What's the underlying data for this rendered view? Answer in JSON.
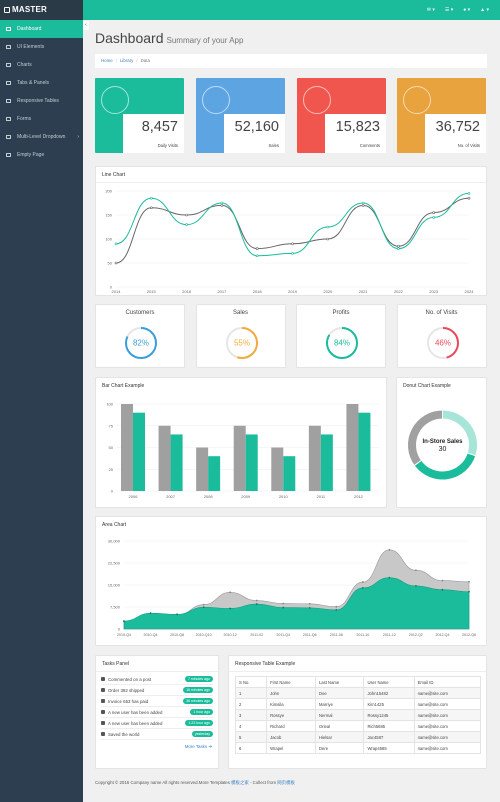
{
  "brand": "MASTER",
  "topbar": {
    "icons": [
      "envelope-icon",
      "bell-icon",
      "user-icon",
      "tasks-icon"
    ]
  },
  "sidebar": {
    "items": [
      {
        "label": "Dashboard",
        "active": true,
        "icon": "dashboard-icon"
      },
      {
        "label": "UI Elements",
        "icon": "desktop-icon"
      },
      {
        "label": "Charts",
        "icon": "bar-chart-icon"
      },
      {
        "label": "Tabs & Panels",
        "icon": "qrcode-icon"
      },
      {
        "label": "Responsive Tables",
        "icon": "table-icon"
      },
      {
        "label": "Forms",
        "icon": "edit-icon"
      },
      {
        "label": "Multi-Level Dropdown",
        "icon": "sitemap-icon",
        "arrow": "›"
      },
      {
        "label": "Empty Page",
        "icon": "file-icon"
      }
    ]
  },
  "header": {
    "title": "Dashboard",
    "subtitle": "Summary of your App"
  },
  "breadcrumb": [
    "Home",
    "Library",
    "Data"
  ],
  "tiles": [
    {
      "value": "8,457",
      "label": "Daily Visits",
      "color": "#1abc9c",
      "icon": "bar-chart-icon"
    },
    {
      "value": "52,160",
      "label": "Sales",
      "color": "#5da4e2",
      "icon": "shopping-cart-icon"
    },
    {
      "value": "15,823",
      "label": "Comments",
      "color": "#f0564e",
      "icon": "comments-icon"
    },
    {
      "value": "36,752",
      "label": "No. of Visits",
      "color": "#e8a23e",
      "icon": "users-icon"
    }
  ],
  "line_chart": {
    "title": "Line Chart"
  },
  "circles": [
    {
      "title": "Customers",
      "value": "82%",
      "pct": 0.82,
      "color": "#3a9ee0"
    },
    {
      "title": "Sales",
      "value": "55%",
      "pct": 0.55,
      "color": "#f1ac3a"
    },
    {
      "title": "Profits",
      "value": "84%",
      "pct": 0.84,
      "color": "#1abc9c"
    },
    {
      "title": "No. of Visits",
      "value": "46%",
      "pct": 0.46,
      "color": "#e94a5a"
    }
  ],
  "bar_chart": {
    "title": "Bar Chart Example"
  },
  "donut": {
    "title": "Donut Chart Example",
    "label": "In-Store Sales",
    "value": "30"
  },
  "area_chart": {
    "title": "Area Chart"
  },
  "tasks": {
    "title": "Tasks Panel",
    "more": "More Tasks",
    "items": [
      {
        "text": "Commented on a post",
        "badge": "7 minutes ago",
        "icon": "comment-icon"
      },
      {
        "text": "Order 392 shipped",
        "badge": "16 minutes ago",
        "icon": "truck-icon"
      },
      {
        "text": "Invoice 653 has paid",
        "badge": "36 minutes ago",
        "icon": "money-icon"
      },
      {
        "text": "A new user has been added",
        "badge": "1 hour ago",
        "icon": "user-icon"
      },
      {
        "text": "A new user has been added",
        "badge": "1.23 hour ago",
        "icon": "user-icon"
      },
      {
        "text": "Saved the world",
        "badge": "yesterday",
        "icon": "check-icon"
      }
    ]
  },
  "table": {
    "title": "Responsive Table Example",
    "headers": [
      "S No.",
      "First Name",
      "Last Name",
      "User Name",
      "Email ID."
    ],
    "rows": [
      [
        "1",
        "John",
        "Doe",
        "John15482",
        "name@site.com"
      ],
      [
        "2",
        "Kimsila",
        "Marriye",
        "Kim1425",
        "name@site.com"
      ],
      [
        "3",
        "Rossye",
        "Nermal",
        "Rossy1245",
        "name@site.com"
      ],
      [
        "4",
        "Richard",
        "Orieal",
        "Rich5685",
        "name@site.com"
      ],
      [
        "5",
        "Jacob",
        "Hielsar",
        "Jac4587",
        "name@site.com"
      ],
      [
        "6",
        "Wrapel",
        "Dere",
        "Wrap4585",
        "name@site.com"
      ]
    ]
  },
  "footer": {
    "text": "Copyright © 2016 Company name All rights reserved.More Templates ",
    "link1": "模板之家",
    "mid": " - Collect from ",
    "link2": "网页模板"
  },
  "chart_data": [
    {
      "type": "line",
      "title": "Line Chart",
      "x": [
        "2014",
        "2015",
        "2016",
        "2017",
        "2018",
        "2019",
        "2020",
        "2021",
        "2022",
        "2023",
        "2024"
      ],
      "ylim": [
        0,
        200
      ],
      "yticks": [
        0,
        50,
        100,
        150,
        200
      ],
      "series": [
        {
          "values": [
            50,
            165,
            150,
            170,
            80,
            90,
            100,
            170,
            85,
            155,
            185
          ],
          "color": "#666666"
        },
        {
          "values": [
            90,
            185,
            130,
            175,
            65,
            70,
            125,
            175,
            80,
            145,
            195
          ],
          "color": "#1abc9c"
        }
      ]
    },
    {
      "type": "bar",
      "title": "Bar Chart Example",
      "categories": [
        "2006",
        "2007",
        "2008",
        "2009",
        "2010",
        "2011",
        "2012"
      ],
      "ylim": [
        0,
        100
      ],
      "yticks": [
        0,
        25,
        50,
        75,
        100
      ],
      "series": [
        {
          "values": [
            100,
            75,
            50,
            75,
            50,
            75,
            100
          ],
          "color": "#a0a0a0"
        },
        {
          "values": [
            90,
            65,
            40,
            65,
            40,
            65,
            90
          ],
          "color": "#1abc9c"
        }
      ]
    },
    {
      "type": "pie",
      "title": "Donut Chart Example",
      "values": [
        30,
        35,
        35
      ],
      "colors": [
        "#a6e5d8",
        "#1abc9c",
        "#a0a0a0"
      ]
    },
    {
      "type": "area",
      "title": "Area Chart",
      "x": [
        "2010-Q4",
        "2010-Q4",
        "2010-Q8",
        "2010-Q10",
        "2010-12",
        "2011-02",
        "2011-Q4",
        "2011-Q6",
        "2011-08",
        "2011-10",
        "2011-12",
        "2012-Q2",
        "2012-Q4",
        "2012-Q6"
      ],
      "ylim": [
        0,
        30000
      ],
      "yticks": [
        "0",
        "7,500",
        "15,000",
        "22,500",
        "30,000"
      ],
      "series": [
        {
          "values": [
            2700,
            5400,
            5000,
            7400,
            7000,
            8500,
            7300,
            7200,
            6500,
            14000,
            17500,
            14700,
            13400,
            12700
          ],
          "color": "#1abc9c"
        },
        {
          "values": [
            2600,
            4000,
            4600,
            8300,
            12500,
            9700,
            8700,
            8600,
            7600,
            16000,
            27000,
            20000,
            16500,
            16100
          ],
          "color": "#c8c8c8"
        }
      ]
    }
  ]
}
